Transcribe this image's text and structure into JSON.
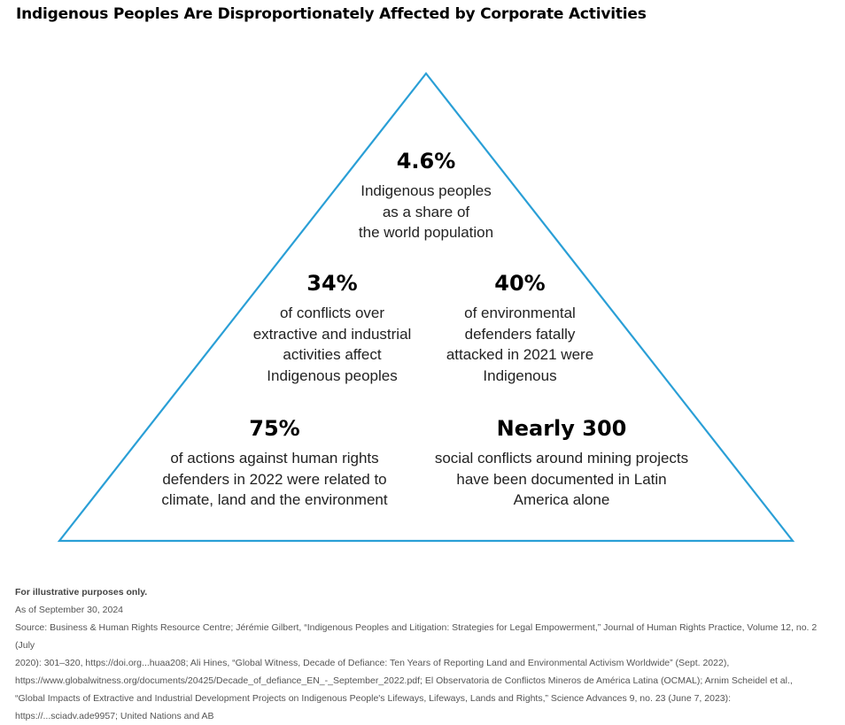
{
  "header": {
    "title": "Indigenous Peoples Are Disproportionately Affected by Corporate Activities"
  },
  "colors": {
    "pyramid_outline": "#2a9fd6",
    "text": "#111111",
    "notes_text": "#555555"
  },
  "pyramid": {
    "tiers": [
      {
        "value": "4.6%",
        "lines": [
          "Indigenous peoples",
          "as a share of",
          "the world population"
        ]
      },
      {
        "value": "34%",
        "lines": [
          "of conflicts over",
          "extractive and industrial",
          "activities affect",
          "Indigenous peoples"
        ]
      },
      {
        "value": "40%",
        "lines": [
          "of environmental",
          "defenders fatally",
          "attacked in 2021 were",
          "Indigenous"
        ]
      },
      {
        "value": "75%",
        "lines": [
          "of actions against human rights",
          "defenders in 2022 were related to",
          "climate, land and the environment"
        ]
      },
      {
        "value": "Nearly 300",
        "lines": [
          "social conflicts around mining projects",
          "have been documented in Latin",
          "America alone"
        ]
      }
    ]
  },
  "footer": {
    "disclaimer": "For illustrative purposes only.",
    "as_of": "As of September 30, 2024",
    "source_lines": [
      "Source: Business & Human Rights Resource Centre; Jérémie Gilbert, “Indigenous Peoples and Litigation: Strategies for Legal Empowerment,” Journal of Human Rights Practice, Volume 12, no. 2 (July",
      "2020): 301–320, https://doi.org...huaa208; Ali Hines, “Global Witness, Decade of Defiance: Ten Years of Reporting Land and Environmental Activism Worldwide” (Sept. 2022),",
      "https://www.globalwitness.org/documents/20425/Decade_of_defiance_EN_-_September_2022.pdf; El Observatoria de Conflictos Mineros de América Latina (OCMAL); Arnim Scheidel et al.,",
      "“Global Impacts of Extractive and Industrial Development Projects on Indigenous People's Lifeways, Lifeways, Lands and Rights,” Science Advances 9, no. 23 (June 7, 2023):",
      "https://...sciadv.ade9957; United Nations and AB"
    ]
  }
}
